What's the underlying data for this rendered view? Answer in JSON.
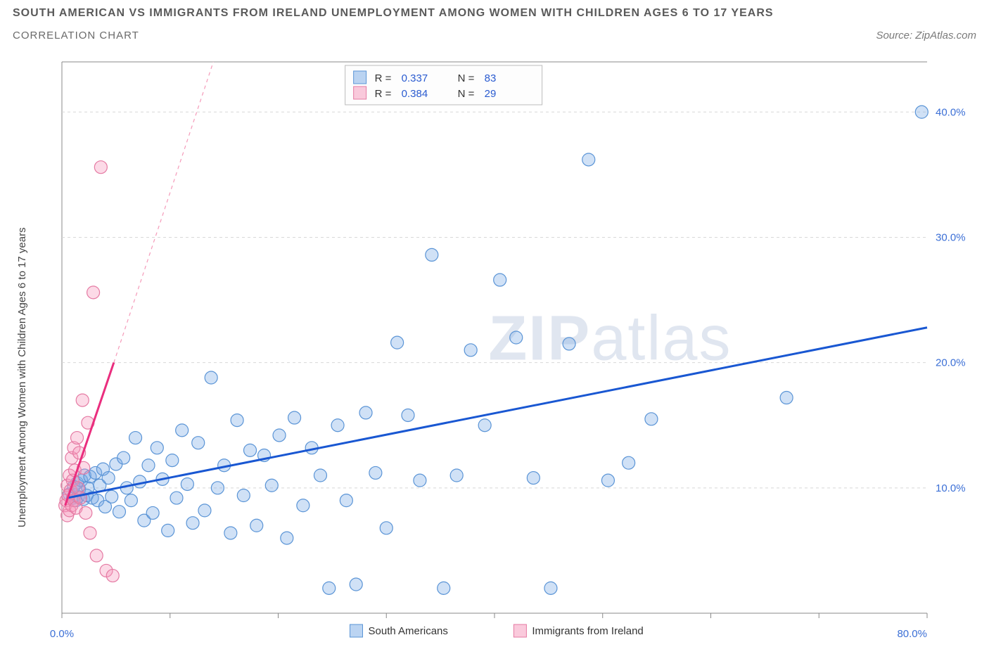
{
  "title": "SOUTH AMERICAN VS IMMIGRANTS FROM IRELAND UNEMPLOYMENT AMONG WOMEN WITH CHILDREN AGES 6 TO 17 YEARS",
  "subtitle": "CORRELATION CHART",
  "source": "Source: ZipAtlas.com",
  "ylabel": "Unemployment Among Women with Children Ages 6 to 17 years",
  "watermark": {
    "bold": "ZIP",
    "thin": "atlas"
  },
  "chart": {
    "type": "scatter",
    "xlim": [
      0,
      80
    ],
    "ylim": [
      0,
      44
    ],
    "yticks": [
      10,
      20,
      30,
      40
    ],
    "ytick_labels": [
      "10.0%",
      "20.0%",
      "30.0%",
      "40.0%"
    ],
    "xtick_positions": [
      0,
      10,
      20,
      30,
      40,
      50,
      60,
      70,
      80
    ],
    "xtick_labels": {
      "0": "0.0%",
      "80": "80.0%"
    },
    "grid_color": "#d8d8d8",
    "background_color": "#ffffff",
    "marker_radius": 9,
    "series": [
      {
        "id": "south_americans",
        "label": "South Americans",
        "color_fill": "rgba(120,170,230,0.35)",
        "color_stroke": "#5a94d6",
        "R": 0.337,
        "N": 83,
        "trend": {
          "x1": 0.5,
          "y1": 9.2,
          "x2": 80,
          "y2": 22.8,
          "color": "#1957d2",
          "width": 3
        },
        "points": [
          [
            0.7,
            9.5
          ],
          [
            1.0,
            9.2
          ],
          [
            1.1,
            10.1
          ],
          [
            1.3,
            9.0
          ],
          [
            1.4,
            10.4
          ],
          [
            1.5,
            9.3
          ],
          [
            1.6,
            9.9
          ],
          [
            1.8,
            10.6
          ],
          [
            2.0,
            9.1
          ],
          [
            2.1,
            11.0
          ],
          [
            2.3,
            9.4
          ],
          [
            2.4,
            10.0
          ],
          [
            2.6,
            10.9
          ],
          [
            2.8,
            9.2
          ],
          [
            3.1,
            11.2
          ],
          [
            3.3,
            9.0
          ],
          [
            3.5,
            10.2
          ],
          [
            3.8,
            11.5
          ],
          [
            4.0,
            8.5
          ],
          [
            4.3,
            10.8
          ],
          [
            4.6,
            9.3
          ],
          [
            5.0,
            11.9
          ],
          [
            5.3,
            8.1
          ],
          [
            5.7,
            12.4
          ],
          [
            6.0,
            10.0
          ],
          [
            6.4,
            9.0
          ],
          [
            6.8,
            14.0
          ],
          [
            7.2,
            10.5
          ],
          [
            7.6,
            7.4
          ],
          [
            8.0,
            11.8
          ],
          [
            8.4,
            8.0
          ],
          [
            8.8,
            13.2
          ],
          [
            9.3,
            10.7
          ],
          [
            9.8,
            6.6
          ],
          [
            10.2,
            12.2
          ],
          [
            10.6,
            9.2
          ],
          [
            11.1,
            14.6
          ],
          [
            11.6,
            10.3
          ],
          [
            12.1,
            7.2
          ],
          [
            12.6,
            13.6
          ],
          [
            13.2,
            8.2
          ],
          [
            13.8,
            18.8
          ],
          [
            14.4,
            10.0
          ],
          [
            15.0,
            11.8
          ],
          [
            15.6,
            6.4
          ],
          [
            16.2,
            15.4
          ],
          [
            16.8,
            9.4
          ],
          [
            17.4,
            13.0
          ],
          [
            18.0,
            7.0
          ],
          [
            18.7,
            12.6
          ],
          [
            19.4,
            10.2
          ],
          [
            20.1,
            14.2
          ],
          [
            20.8,
            6.0
          ],
          [
            21.5,
            15.6
          ],
          [
            22.3,
            8.6
          ],
          [
            23.1,
            13.2
          ],
          [
            23.9,
            11.0
          ],
          [
            24.7,
            2.0
          ],
          [
            25.5,
            15.0
          ],
          [
            26.3,
            9.0
          ],
          [
            27.2,
            2.3
          ],
          [
            28.1,
            16.0
          ],
          [
            29.0,
            11.2
          ],
          [
            30.0,
            6.8
          ],
          [
            31.0,
            21.6
          ],
          [
            32.0,
            15.8
          ],
          [
            33.1,
            10.6
          ],
          [
            34.2,
            28.6
          ],
          [
            35.3,
            2.0
          ],
          [
            36.5,
            11.0
          ],
          [
            37.8,
            21.0
          ],
          [
            39.1,
            15.0
          ],
          [
            40.5,
            26.6
          ],
          [
            42.0,
            22.0
          ],
          [
            43.6,
            10.8
          ],
          [
            45.2,
            2.0
          ],
          [
            46.9,
            21.5
          ],
          [
            48.7,
            36.2
          ],
          [
            50.5,
            10.6
          ],
          [
            52.4,
            12.0
          ],
          [
            54.5,
            15.5
          ],
          [
            67.0,
            17.2
          ],
          [
            79.5,
            40.0
          ]
        ]
      },
      {
        "id": "immigrants_ireland",
        "label": "Immigrants from Ireland",
        "color_fill": "rgba(245,150,185,0.35)",
        "color_stroke": "#e57aa3",
        "R": 0.384,
        "N": 29,
        "trend_max": {
          "x1": 0.3,
          "y1": 8.6,
          "x2": 4.8,
          "y2": 20.0,
          "color": "#ea2e7e",
          "width": 3
        },
        "trend_dash": {
          "x1": 4.8,
          "y1": 20.0,
          "x2": 14.0,
          "y2": 44.0,
          "color": "#f59ab9"
        },
        "points": [
          [
            0.3,
            8.6
          ],
          [
            0.4,
            9.0
          ],
          [
            0.5,
            7.8
          ],
          [
            0.5,
            10.2
          ],
          [
            0.6,
            9.4
          ],
          [
            0.7,
            8.2
          ],
          [
            0.7,
            11.0
          ],
          [
            0.8,
            9.8
          ],
          [
            0.9,
            8.6
          ],
          [
            0.9,
            12.4
          ],
          [
            1.0,
            10.6
          ],
          [
            1.1,
            9.0
          ],
          [
            1.1,
            13.2
          ],
          [
            1.2,
            11.4
          ],
          [
            1.3,
            8.4
          ],
          [
            1.4,
            14.0
          ],
          [
            1.5,
            10.0
          ],
          [
            1.6,
            12.8
          ],
          [
            1.7,
            9.2
          ],
          [
            1.9,
            17.0
          ],
          [
            2.0,
            11.6
          ],
          [
            2.2,
            8.0
          ],
          [
            2.4,
            15.2
          ],
          [
            2.6,
            6.4
          ],
          [
            2.9,
            25.6
          ],
          [
            3.2,
            4.6
          ],
          [
            3.6,
            35.6
          ],
          [
            4.1,
            3.4
          ],
          [
            4.7,
            3.0
          ]
        ]
      }
    ],
    "stats_legend": {
      "R_label": "R =",
      "N_label": "N ="
    },
    "bottom_legend": {
      "blue": "South Americans",
      "pink": "Immigrants from Ireland"
    }
  }
}
